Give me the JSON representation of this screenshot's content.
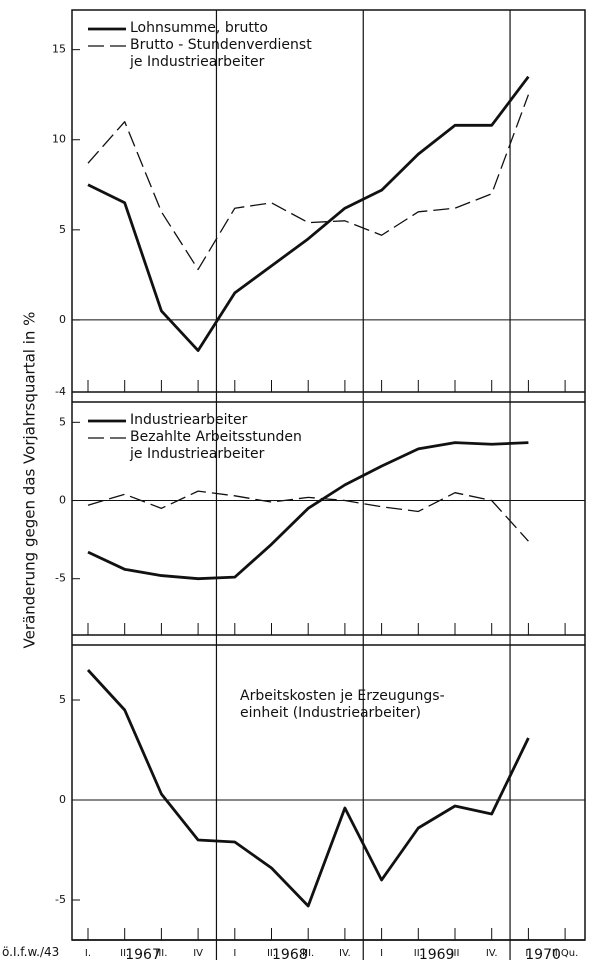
{
  "y_axis_label": "Veränderung gegen das Vorjahrsquartal in %",
  "x_axis": {
    "categories": [
      "I.",
      "II.",
      "III.",
      "IV",
      "I",
      "II.",
      "III.",
      "IV.",
      "I",
      "II.",
      "III",
      "IV.",
      "I.",
      "II.Qu."
    ],
    "years": [
      "1967",
      "1968",
      "1969",
      "1970"
    ]
  },
  "footer": "ö.I.f.w./43",
  "chart_data": [
    {
      "type": "line",
      "ylim": [
        -4,
        17.2
      ],
      "yticks": [
        -4,
        0,
        5,
        10,
        15
      ],
      "zero_line": true,
      "series": [
        {
          "name": "Lohnsumme, brutto",
          "color": "#111111",
          "style": "solid",
          "values": [
            7.5,
            6.5,
            0.5,
            -1.7,
            1.5,
            3,
            4.5,
            6.2,
            7.2,
            9.2,
            10.8,
            10.8,
            13.5,
            null
          ]
        },
        {
          "name": "Brutto - Stundenverdienst\nje Industriearbeiter",
          "color": "#111111",
          "style": "dashed",
          "values": [
            8.7,
            11,
            6,
            2.8,
            6.2,
            6.5,
            5.4,
            5.5,
            4.7,
            6,
            6.2,
            7,
            12.5,
            null
          ]
        }
      ]
    },
    {
      "type": "line",
      "ylim": [
        -8.6,
        6.3
      ],
      "yticks": [
        -5,
        0,
        5
      ],
      "zero_line": true,
      "series": [
        {
          "name": "Industriearbeiter",
          "color": "#111111",
          "style": "solid",
          "values": [
            -3.3,
            -4.4,
            -4.8,
            -5,
            -4.9,
            -2.8,
            -0.5,
            1,
            2.2,
            3.3,
            3.7,
            3.6,
            3.7,
            null
          ]
        },
        {
          "name": "Bezahlte Arbeitsstunden\nje Industriearbeiter",
          "color": "#111111",
          "style": "dashed",
          "values": [
            -0.3,
            0.4,
            -0.5,
            0.6,
            0.3,
            -0.1,
            0.2,
            0,
            -0.4,
            -0.7,
            0.5,
            0,
            -2.6,
            null
          ]
        }
      ]
    },
    {
      "type": "line",
      "ylim": [
        -7,
        7.75
      ],
      "yticks": [
        -5,
        0,
        5
      ],
      "zero_line": true,
      "series": [
        {
          "name": "Arbeitskosten je Erzeugungs-\neinheit (Industriearbeiter)",
          "color": "#111111",
          "style": "solid",
          "values": [
            6.5,
            4.5,
            0.3,
            -2,
            -2.1,
            -3.4,
            -5.3,
            -0.4,
            -4,
            -1.4,
            -0.3,
            -0.7,
            3.1,
            null
          ]
        }
      ]
    }
  ]
}
